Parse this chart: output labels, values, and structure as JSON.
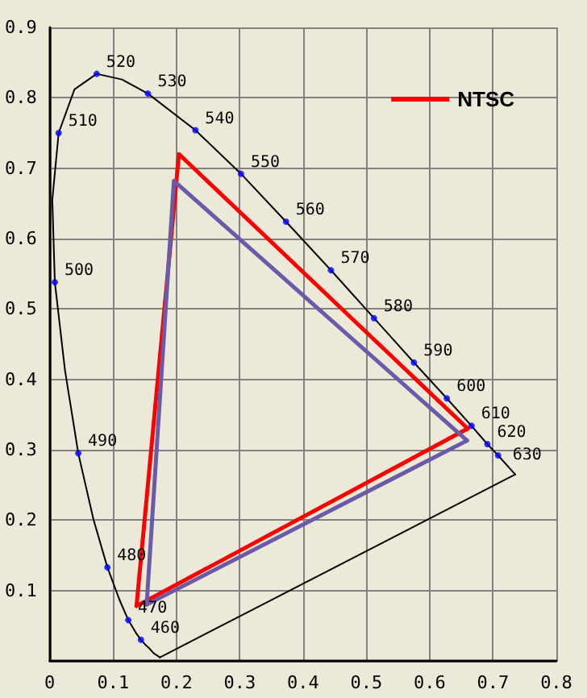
{
  "chart_data": {
    "type": "line",
    "xlim": [
      0,
      0.8
    ],
    "ylim": [
      0,
      0.9
    ],
    "xticks": [
      0,
      0.1,
      0.2,
      0.3,
      0.4,
      0.5,
      0.6,
      0.7,
      0.8
    ],
    "yticks": [
      {
        "value": 0,
        "label": null
      },
      0.1,
      0.2,
      0.3,
      0.4,
      0.5,
      0.6,
      0.7,
      0.8,
      0.9
    ],
    "grid": true,
    "legend": "top right",
    "series": [
      {
        "color": "#000000",
        "marker": "none",
        "line_style": "solid",
        "x": [
          0.174,
          0.164,
          0.157,
          0.151,
          0.144,
          0.136,
          0.124,
          0.11,
          0.091,
          0.069,
          0.045,
          0.024,
          0.008,
          0.004,
          0.014,
          0.039,
          0.074,
          0.114,
          0.155,
          0.23,
          0.302,
          0.373,
          0.444,
          0.512,
          0.575,
          0.627,
          0.666,
          0.691,
          0.708,
          0.735
        ],
        "values": [
          0.005,
          0.011,
          0.018,
          0.023,
          0.03,
          0.04,
          0.058,
          0.087,
          0.133,
          0.201,
          0.295,
          0.413,
          0.538,
          0.655,
          0.75,
          0.812,
          0.834,
          0.826,
          0.806,
          0.754,
          0.692,
          0.624,
          0.555,
          0.487,
          0.424,
          0.373,
          0.334,
          0.308,
          0.292,
          0.265
        ]
      },
      {
        "color": "#000000",
        "marker": "none",
        "line_style": "solid",
        "x": [
          0.174,
          0.735
        ],
        "values": [
          0.005,
          0.265
        ]
      },
      {
        "type": "scatter",
        "color": "#0000ff",
        "marker": "circle",
        "x": [
          0.144,
          0.124,
          0.091,
          0.045,
          0.008,
          0.014,
          0.074,
          0.155,
          0.23,
          0.302,
          0.373,
          0.444,
          0.512,
          0.575,
          0.627,
          0.666,
          0.691,
          0.708
        ],
        "values": [
          0.03,
          0.058,
          0.133,
          0.295,
          0.538,
          0.75,
          0.834,
          0.806,
          0.754,
          0.692,
          0.624,
          0.555,
          0.487,
          0.424,
          0.373,
          0.334,
          0.308,
          0.292
        ]
      },
      {
        "name": "NTSC",
        "color": "#ff0000",
        "marker": "none",
        "line_style": "solid",
        "x": [
          0.137,
          0.204,
          0.66
        ],
        "values": [
          0.078,
          0.72,
          0.33
        ]
      },
      {
        "color": "#ff0000",
        "marker": "none",
        "line_style": "solid",
        "x": [
          0.137,
          0.66
        ],
        "values": [
          0.078,
          0.33
        ]
      },
      {
        "color": "#6a5aa8",
        "marker": "none",
        "line_style": "solid",
        "x": [
          0.153,
          0.196,
          0.659
        ],
        "values": [
          0.08,
          0.682,
          0.313
        ]
      },
      {
        "color": "#6a5aa8",
        "marker": "none",
        "line_style": "solid",
        "x": [
          0.153,
          0.659
        ],
        "values": [
          0.08,
          0.313
        ]
      }
    ],
    "annotations": [
      {
        "text": "460",
        "x": 0.144,
        "y": 0.03
      },
      {
        "text": "470",
        "x": 0.124,
        "y": 0.058
      },
      {
        "text": "480",
        "x": 0.091,
        "y": 0.133
      },
      {
        "text": "490",
        "x": 0.045,
        "y": 0.295
      },
      {
        "text": "500",
        "x": 0.008,
        "y": 0.538
      },
      {
        "text": "510",
        "x": 0.014,
        "y": 0.75
      },
      {
        "text": "520",
        "x": 0.074,
        "y": 0.834
      },
      {
        "text": "530",
        "x": 0.155,
        "y": 0.806
      },
      {
        "text": "540",
        "x": 0.23,
        "y": 0.754
      },
      {
        "text": "550",
        "x": 0.302,
        "y": 0.692
      },
      {
        "text": "560",
        "x": 0.373,
        "y": 0.624
      },
      {
        "text": "570",
        "x": 0.444,
        "y": 0.555
      },
      {
        "text": "580",
        "x": 0.512,
        "y": 0.487
      },
      {
        "text": "590",
        "x": 0.575,
        "y": 0.424
      },
      {
        "text": "600",
        "x": 0.627,
        "y": 0.373
      },
      {
        "text": "610",
        "x": 0.666,
        "y": 0.334
      },
      {
        "text": "620",
        "x": 0.691,
        "y": 0.308
      },
      {
        "text": "630",
        "x": 0.708,
        "y": 0.292
      }
    ]
  }
}
